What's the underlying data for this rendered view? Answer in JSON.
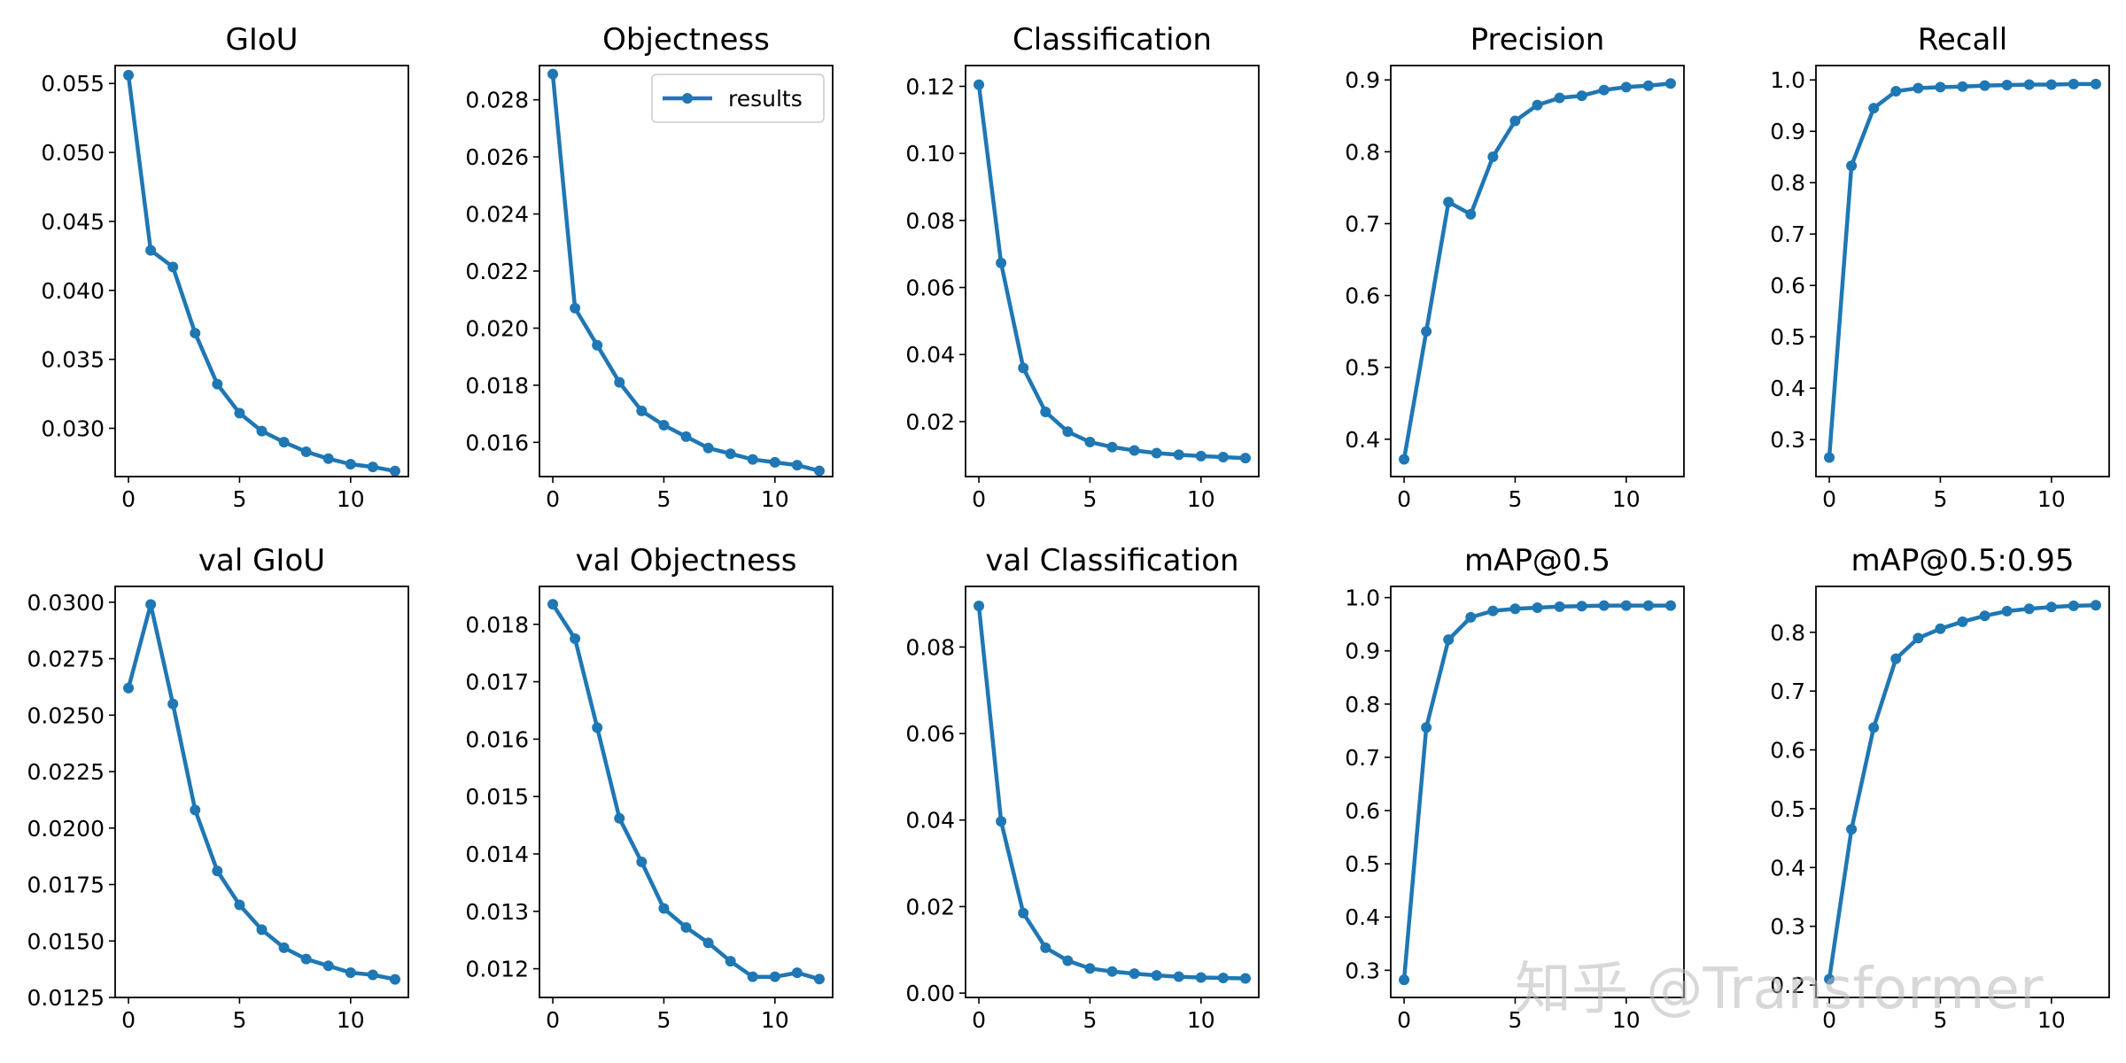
{
  "colors": {
    "series": "#1f77b4",
    "axes": "#000000",
    "background": "#ffffff"
  },
  "watermark": "知乎 @Transformer",
  "chart_data": [
    {
      "type": "line",
      "title": "GIoU",
      "legend": null,
      "x": [
        0,
        1,
        2,
        3,
        4,
        5,
        6,
        7,
        8,
        9,
        10,
        11,
        12
      ],
      "series": [
        {
          "name": "",
          "values": [
            0.0556,
            0.0429,
            0.0417,
            0.0369,
            0.0332,
            0.0311,
            0.0298,
            0.029,
            0.0283,
            0.0278,
            0.0274,
            0.0272,
            0.0269
          ]
        }
      ],
      "xlim": [
        -0.6,
        12.6
      ],
      "ylim": [
        0.0265,
        0.0563
      ],
      "xticks": [
        0,
        5,
        10
      ],
      "yticks": [
        0.03,
        0.035,
        0.04,
        0.045,
        0.05,
        0.055
      ],
      "ytick_labels": [
        "0.030",
        "0.035",
        "0.040",
        "0.045",
        "0.050",
        "0.055"
      ]
    },
    {
      "type": "line",
      "title": "Objectness",
      "legend": {
        "label": "results",
        "position": "upper right"
      },
      "x": [
        0,
        1,
        2,
        3,
        4,
        5,
        6,
        7,
        8,
        9,
        10,
        11,
        12
      ],
      "series": [
        {
          "name": "results",
          "values": [
            0.0289,
            0.0207,
            0.0194,
            0.0181,
            0.0171,
            0.0166,
            0.0162,
            0.0158,
            0.0156,
            0.0154,
            0.0153,
            0.0152,
            0.015
          ]
        }
      ],
      "xlim": [
        -0.6,
        12.6
      ],
      "ylim": [
        0.0148,
        0.0292
      ],
      "xticks": [
        0,
        5,
        10
      ],
      "yticks": [
        0.016,
        0.018,
        0.02,
        0.022,
        0.024,
        0.026,
        0.028
      ],
      "ytick_labels": [
        "0.016",
        "0.018",
        "0.020",
        "0.022",
        "0.024",
        "0.026",
        "0.028"
      ]
    },
    {
      "type": "line",
      "title": "Classification",
      "legend": null,
      "x": [
        0,
        1,
        2,
        3,
        4,
        5,
        6,
        7,
        8,
        9,
        10,
        11,
        12
      ],
      "series": [
        {
          "name": "",
          "values": [
            0.1205,
            0.0673,
            0.036,
            0.0229,
            0.017,
            0.0139,
            0.0124,
            0.0114,
            0.0106,
            0.0101,
            0.0097,
            0.0094,
            0.0091
          ]
        }
      ],
      "xlim": [
        -0.6,
        12.6
      ],
      "ylim": [
        0.0036,
        0.1262
      ],
      "xticks": [
        0,
        5,
        10
      ],
      "yticks": [
        0.02,
        0.04,
        0.06,
        0.08,
        0.1,
        0.12
      ],
      "ytick_labels": [
        "0.02",
        "0.04",
        "0.06",
        "0.08",
        "0.10",
        "0.12"
      ]
    },
    {
      "type": "line",
      "title": "Precision",
      "legend": null,
      "x": [
        0,
        1,
        2,
        3,
        4,
        5,
        6,
        7,
        8,
        9,
        10,
        11,
        12
      ],
      "series": [
        {
          "name": "",
          "values": [
            0.372,
            0.55,
            0.73,
            0.713,
            0.793,
            0.843,
            0.865,
            0.875,
            0.878,
            0.886,
            0.89,
            0.892,
            0.895
          ]
        }
      ],
      "xlim": [
        -0.6,
        12.6
      ],
      "ylim": [
        0.348,
        0.92
      ],
      "xticks": [
        0,
        5,
        10
      ],
      "yticks": [
        0.4,
        0.5,
        0.6,
        0.7,
        0.8,
        0.9
      ],
      "ytick_labels": [
        "0.4",
        "0.5",
        "0.6",
        "0.7",
        "0.8",
        "0.9"
      ]
    },
    {
      "type": "line",
      "title": "Recall",
      "legend": null,
      "x": [
        0,
        1,
        2,
        3,
        4,
        5,
        6,
        7,
        8,
        9,
        10,
        11,
        12
      ],
      "series": [
        {
          "name": "",
          "values": [
            0.265,
            0.833,
            0.945,
            0.978,
            0.984,
            0.986,
            0.987,
            0.989,
            0.99,
            0.991,
            0.991,
            0.992,
            0.992
          ]
        }
      ],
      "xlim": [
        -0.6,
        12.6
      ],
      "ylim": [
        0.228,
        1.028
      ],
      "xticks": [
        0,
        5,
        10
      ],
      "yticks": [
        0.3,
        0.4,
        0.5,
        0.6,
        0.7,
        0.8,
        0.9,
        1.0
      ],
      "ytick_labels": [
        "0.3",
        "0.4",
        "0.5",
        "0.6",
        "0.7",
        "0.8",
        "0.9",
        "1.0"
      ]
    },
    {
      "type": "line",
      "title": "val GIoU",
      "legend": null,
      "x": [
        0,
        1,
        2,
        3,
        4,
        5,
        6,
        7,
        8,
        9,
        10,
        11,
        12
      ],
      "series": [
        {
          "name": "",
          "values": [
            0.0262,
            0.0299,
            0.0255,
            0.0208,
            0.0181,
            0.0166,
            0.0155,
            0.0147,
            0.0142,
            0.0139,
            0.0136,
            0.0135,
            0.0133
          ]
        }
      ],
      "xlim": [
        -0.6,
        12.6
      ],
      "ylim": [
        0.0125,
        0.0307
      ],
      "xticks": [
        0,
        5,
        10
      ],
      "yticks": [
        0.0125,
        0.015,
        0.0175,
        0.02,
        0.0225,
        0.025,
        0.0275,
        0.03
      ],
      "ytick_labels": [
        "0.0125",
        "0.0150",
        "0.0175",
        "0.0200",
        "0.0225",
        "0.0250",
        "0.0275",
        "0.0300"
      ]
    },
    {
      "type": "line",
      "title": "val Objectness",
      "legend": null,
      "x": [
        0,
        1,
        2,
        3,
        4,
        5,
        6,
        7,
        8,
        9,
        10,
        11,
        12
      ],
      "series": [
        {
          "name": "",
          "values": [
            0.01835,
            0.01775,
            0.0162,
            0.01462,
            0.01386,
            0.01305,
            0.01272,
            0.01245,
            0.01213,
            0.01186,
            0.01186,
            0.01193,
            0.01182
          ]
        }
      ],
      "xlim": [
        -0.6,
        12.6
      ],
      "ylim": [
        0.0115,
        0.01866
      ],
      "xticks": [
        0,
        5,
        10
      ],
      "yticks": [
        0.012,
        0.013,
        0.014,
        0.015,
        0.016,
        0.017,
        0.018
      ],
      "ytick_labels": [
        "0.012",
        "0.013",
        "0.014",
        "0.015",
        "0.016",
        "0.017",
        "0.018"
      ]
    },
    {
      "type": "line",
      "title": "val Classification",
      "legend": null,
      "x": [
        0,
        1,
        2,
        3,
        4,
        5,
        6,
        7,
        8,
        9,
        10,
        11,
        12
      ],
      "series": [
        {
          "name": "",
          "values": [
            0.0895,
            0.0397,
            0.0185,
            0.0105,
            0.0075,
            0.0057,
            0.005,
            0.0045,
            0.0041,
            0.0038,
            0.0036,
            0.0035,
            0.0034
          ]
        }
      ],
      "xlim": [
        -0.6,
        12.6
      ],
      "ylim": [
        -0.001,
        0.094
      ],
      "xticks": [
        0,
        5,
        10
      ],
      "yticks": [
        0.0,
        0.02,
        0.04,
        0.06,
        0.08
      ],
      "ytick_labels": [
        "0.00",
        "0.02",
        "0.04",
        "0.06",
        "0.08"
      ]
    },
    {
      "type": "line",
      "title": "mAP@0.5",
      "legend": null,
      "x": [
        0,
        1,
        2,
        3,
        4,
        5,
        6,
        7,
        8,
        9,
        10,
        11,
        12
      ],
      "series": [
        {
          "name": "",
          "values": [
            0.282,
            0.756,
            0.921,
            0.963,
            0.975,
            0.979,
            0.981,
            0.983,
            0.984,
            0.985,
            0.985,
            0.985,
            0.985
          ]
        }
      ],
      "xlim": [
        -0.6,
        12.6
      ],
      "ylim": [
        0.249,
        1.021
      ],
      "xticks": [
        0,
        5,
        10
      ],
      "yticks": [
        0.3,
        0.4,
        0.5,
        0.6,
        0.7,
        0.8,
        0.9,
        1.0
      ],
      "ytick_labels": [
        "0.3",
        "0.4",
        "0.5",
        "0.6",
        "0.7",
        "0.8",
        "0.9",
        "1.0"
      ]
    },
    {
      "type": "line",
      "title": "mAP@0.5:0.95",
      "legend": null,
      "x": [
        0,
        1,
        2,
        3,
        4,
        5,
        6,
        7,
        8,
        9,
        10,
        11,
        12
      ],
      "series": [
        {
          "name": "",
          "values": [
            0.21,
            0.465,
            0.638,
            0.755,
            0.79,
            0.806,
            0.818,
            0.828,
            0.836,
            0.84,
            0.843,
            0.845,
            0.846
          ]
        }
      ],
      "xlim": [
        -0.6,
        12.6
      ],
      "ylim": [
        0.179,
        0.878
      ],
      "xticks": [
        0,
        5,
        10
      ],
      "yticks": [
        0.2,
        0.3,
        0.4,
        0.5,
        0.6,
        0.7,
        0.8
      ],
      "ytick_labels": [
        "0.2",
        "0.3",
        "0.4",
        "0.5",
        "0.6",
        "0.7",
        "0.8"
      ]
    }
  ]
}
